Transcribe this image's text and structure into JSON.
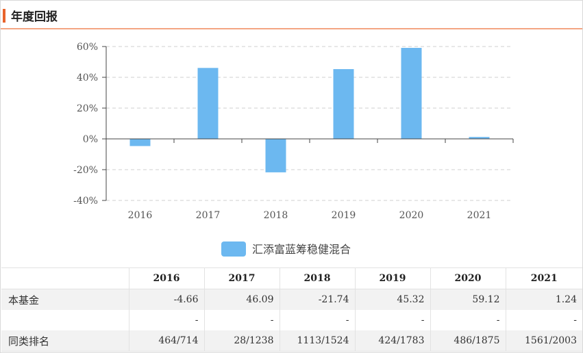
{
  "header": {
    "title": "年度回报"
  },
  "chart_data": {
    "type": "bar",
    "categories": [
      "2016",
      "2017",
      "2018",
      "2019",
      "2020",
      "2021"
    ],
    "series": [
      {
        "name": "汇添富蓝筹稳健混合",
        "values": [
          -4.66,
          46.09,
          -21.74,
          45.32,
          59.12,
          1.24
        ],
        "color": "#6cb8f0"
      }
    ],
    "ylim": [
      -40,
      60
    ],
    "yticks": [
      -40,
      -20,
      0,
      20,
      40,
      60
    ],
    "ytick_labels": [
      "-40%",
      "-20%",
      "0%",
      "20%",
      "40%",
      "60%"
    ],
    "grid": true,
    "legend": "bottom-center"
  },
  "table": {
    "headers": [
      "",
      "2016",
      "2017",
      "2018",
      "2019",
      "2020",
      "2021"
    ],
    "rows": [
      {
        "label": "本基金",
        "cells": [
          "-4.66",
          "46.09",
          "-21.74",
          "45.32",
          "59.12",
          "1.24"
        ]
      },
      {
        "label": "",
        "cells": [
          "-",
          "-",
          "-",
          "-",
          "-",
          "-"
        ]
      },
      {
        "label": "同类排名",
        "cells": [
          "464/714",
          "28/1238",
          "1113/1524",
          "424/1783",
          "486/1875",
          "1561/2003"
        ]
      }
    ]
  }
}
